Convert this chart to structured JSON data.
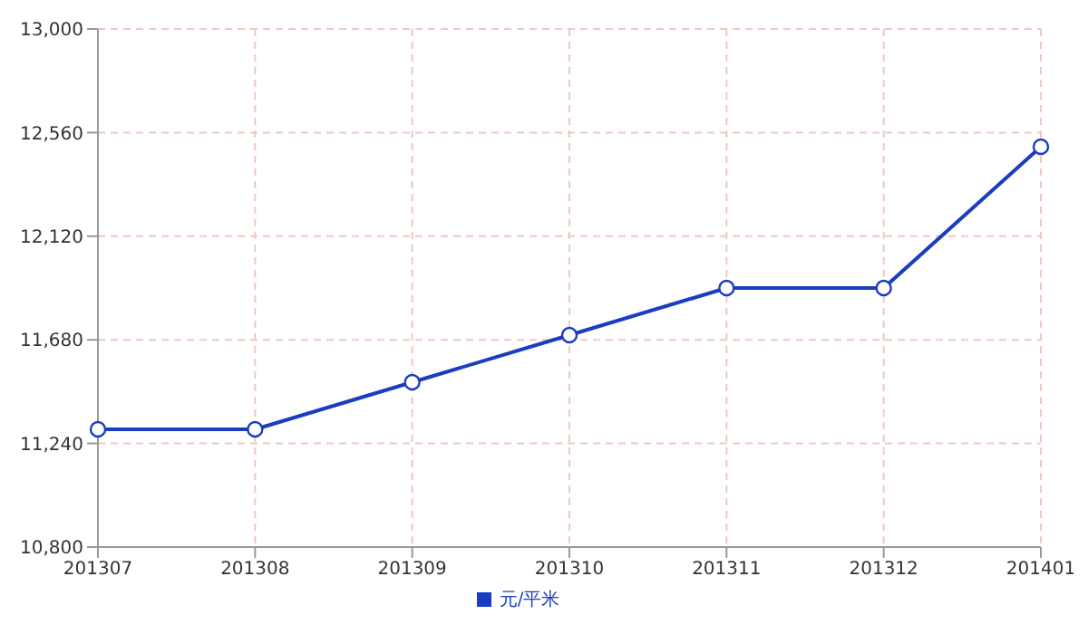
{
  "chart_data": {
    "type": "line",
    "categories": [
      "201307",
      "201308",
      "201309",
      "201310",
      "201311",
      "201312",
      "201401"
    ],
    "series": [
      {
        "name": "元/平米",
        "color": "#1a3dc1",
        "values": [
          11300,
          11300,
          11500,
          11700,
          11900,
          11900,
          12500
        ]
      }
    ],
    "ylim": [
      10800,
      13000
    ],
    "yticks": [
      {
        "value": 10800,
        "label": "10,800"
      },
      {
        "value": 11240,
        "label": "11,240"
      },
      {
        "value": 11680,
        "label": "11,680"
      },
      {
        "value": 12120,
        "label": "12,120"
      },
      {
        "value": 12560,
        "label": "12,560"
      },
      {
        "value": 13000,
        "label": "13,000"
      }
    ],
    "grid": true,
    "legend": "bottom",
    "marker": "circle",
    "line_style": "solid"
  }
}
